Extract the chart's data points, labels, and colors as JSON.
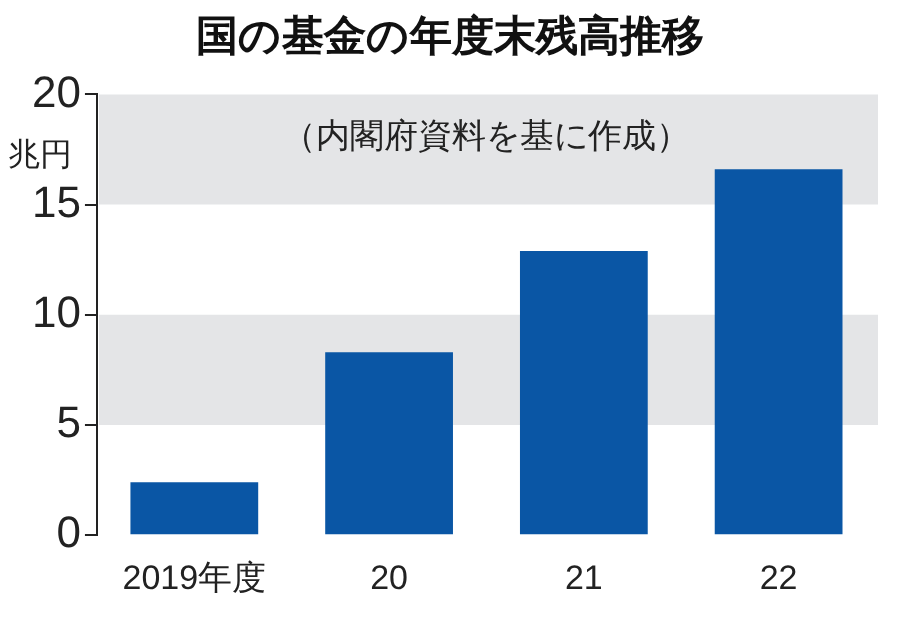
{
  "chart_data": {
    "type": "bar",
    "title": "国の基金の年度末残高推移",
    "subtitle": "（内閣府資料を基に作成）",
    "ylabel": "兆円",
    "categories": [
      "2019年度",
      "20",
      "21",
      "22"
    ],
    "values": [
      2.4,
      8.3,
      12.9,
      16.6
    ],
    "color": "#0a56a5",
    "ylim": [
      0,
      20
    ],
    "yticks": [
      0,
      5,
      10,
      15,
      20
    ],
    "grid": false,
    "bands": [
      {
        "axis": "y",
        "from": 5,
        "to": 10,
        "color": "#e4e5e7"
      },
      {
        "axis": "y",
        "from": 15,
        "to": 20,
        "color": "#e4e5e7"
      }
    ]
  }
}
